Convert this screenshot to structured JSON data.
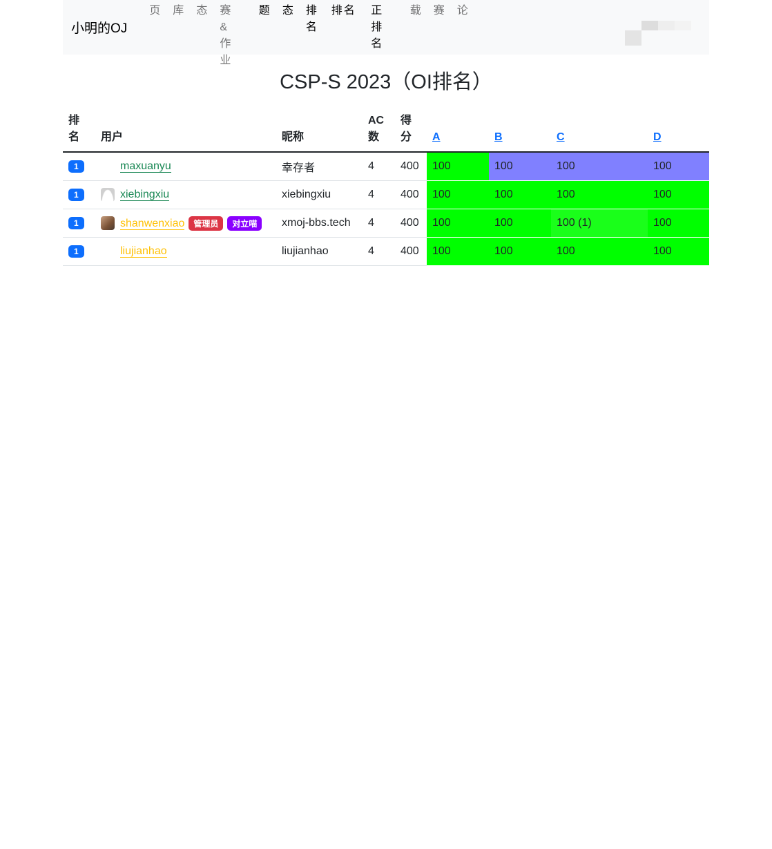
{
  "nav": {
    "brand": "小明的OJ",
    "items": [
      {
        "label": "首页",
        "dark": false
      },
      {
        "label": "题库",
        "dark": false
      },
      {
        "label": "状态",
        "dark": false
      },
      {
        "label": "竞赛&作业",
        "dark": false
      },
      {
        "label": "[",
        "dark": false
      },
      {
        "label": "问题",
        "dark": true
      },
      {
        "label": "状态",
        "dark": true
      },
      {
        "label": "OI 排名",
        "dark": true
      },
      {
        "label": "ACM 排名",
        "dark": true
      },
      {
        "label": "订正 排名",
        "dark": true
      },
      {
        "label": "]",
        "dark": false
      },
      {
        "label": "下载",
        "dark": false
      },
      {
        "label": "月赛",
        "dark": false
      },
      {
        "label": "讨论",
        "dark": false
      }
    ]
  },
  "title": "CSP-S 2023（OI排名）",
  "table": {
    "headers": {
      "rank": "排名",
      "user": "用户",
      "nick": "昵称",
      "ac": "AC数",
      "score": "得分",
      "problems": [
        "A",
        "B",
        "C",
        "D"
      ]
    },
    "rows": [
      {
        "rank": "1",
        "user": "maxuanyu",
        "user_color": "#198754",
        "avatar": "none",
        "badges": [],
        "nick": "幸存者",
        "ac": "4",
        "score": "400",
        "cells": [
          {
            "v": "100",
            "c": "#00ff00"
          },
          {
            "v": "100",
            "c": "#8080ff"
          },
          {
            "v": "100",
            "c": "#8080ff"
          },
          {
            "v": "100",
            "c": "#8080ff"
          }
        ]
      },
      {
        "rank": "1",
        "user": "xiebingxiu",
        "user_color": "#198754",
        "avatar": "grey",
        "badges": [],
        "nick": "xiebingxiu",
        "ac": "4",
        "score": "400",
        "cells": [
          {
            "v": "100",
            "c": "#00ff00"
          },
          {
            "v": "100",
            "c": "#00ff00"
          },
          {
            "v": "100",
            "c": "#00ff00"
          },
          {
            "v": "100",
            "c": "#00ff00"
          }
        ]
      },
      {
        "rank": "1",
        "user": "shanwenxiao",
        "user_color": "#ffc107",
        "avatar": "photo",
        "badges": [
          {
            "label": "管理员",
            "color": "#dc3545"
          },
          {
            "label": "对立喵",
            "color": "#8a00ff"
          }
        ],
        "nick": "xmoj-bbs.tech",
        "ac": "4",
        "score": "400",
        "cells": [
          {
            "v": "100",
            "c": "#00ff00"
          },
          {
            "v": "100",
            "c": "#00ff00"
          },
          {
            "v": "100 (1)",
            "c": "#1aff1a"
          },
          {
            "v": "100",
            "c": "#00ff00"
          }
        ]
      },
      {
        "rank": "1",
        "user": "liujianhao",
        "user_color": "#ffc107",
        "avatar": "none",
        "badges": [],
        "nick": "liujianhao",
        "ac": "4",
        "score": "400",
        "cells": [
          {
            "v": "100",
            "c": "#00ff00"
          },
          {
            "v": "100",
            "c": "#00ff00"
          },
          {
            "v": "100",
            "c": "#00ff00"
          },
          {
            "v": "100",
            "c": "#00ff00"
          }
        ]
      }
    ]
  }
}
